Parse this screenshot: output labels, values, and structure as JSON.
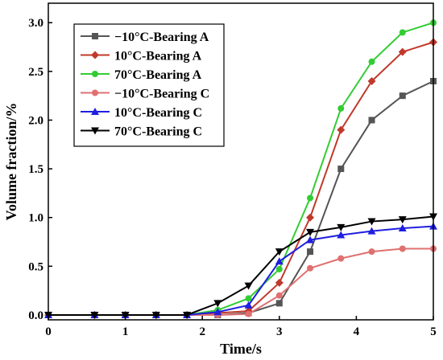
{
  "chart_data": {
    "type": "line",
    "title": "",
    "xlabel": "Time/s",
    "ylabel": "Volume fraction/%",
    "xlim": [
      0,
      5
    ],
    "ylim": [
      -0.05,
      3.2
    ],
    "xticks": [
      0,
      1,
      2,
      3,
      4,
      5
    ],
    "xtick_labels": [
      "0",
      "1",
      "2",
      "3",
      "4",
      "5"
    ],
    "yticks": [
      0.0,
      0.5,
      1.0,
      1.5,
      2.0,
      2.5,
      3.0
    ],
    "ytick_labels": [
      "0.0",
      "0.5",
      "1.0",
      "1.5",
      "2.0",
      "2.5",
      "3.0"
    ],
    "grid": false,
    "legend_position": "top-left",
    "x": [
      0,
      0.6,
      1.0,
      1.4,
      1.8,
      2.2,
      2.6,
      3.0,
      3.4,
      3.8,
      4.2,
      4.6,
      5.0
    ],
    "series": [
      {
        "name": "−10°C-Bearing A",
        "color": "#555555",
        "marker": "square",
        "values": [
          0,
          0,
          0,
          0,
          0,
          0,
          0.02,
          0.12,
          0.65,
          1.5,
          2.0,
          2.25,
          2.4
        ]
      },
      {
        "name": "10°C-Bearing A",
        "color": "#c0392b",
        "marker": "diamond",
        "values": [
          0,
          0,
          0,
          0,
          0,
          0.02,
          0.04,
          0.33,
          1.0,
          1.9,
          2.4,
          2.7,
          2.8
        ]
      },
      {
        "name": "70°C-Bearing A",
        "color": "#33cc33",
        "marker": "circle",
        "values": [
          0,
          0,
          0,
          0,
          0,
          0.05,
          0.17,
          0.47,
          1.2,
          2.12,
          2.6,
          2.9,
          3.0
        ]
      },
      {
        "name": "−10°C-Bearing C",
        "color": "#e07070",
        "marker": "circle",
        "values": [
          0,
          0,
          0,
          0,
          0,
          0,
          0.01,
          0.2,
          0.48,
          0.58,
          0.65,
          0.68,
          0.68
        ]
      },
      {
        "name": "10°C-Bearing C",
        "color": "#1f1fe0",
        "marker": "triangle-up",
        "values": [
          0,
          0,
          0,
          0,
          0,
          0.03,
          0.1,
          0.55,
          0.77,
          0.82,
          0.86,
          0.89,
          0.91
        ]
      },
      {
        "name": "70°C-Bearing C",
        "color": "#000000",
        "marker": "triangle-down",
        "values": [
          0,
          0,
          0,
          0,
          0,
          0.12,
          0.3,
          0.65,
          0.85,
          0.9,
          0.96,
          0.98,
          1.01
        ]
      }
    ]
  }
}
